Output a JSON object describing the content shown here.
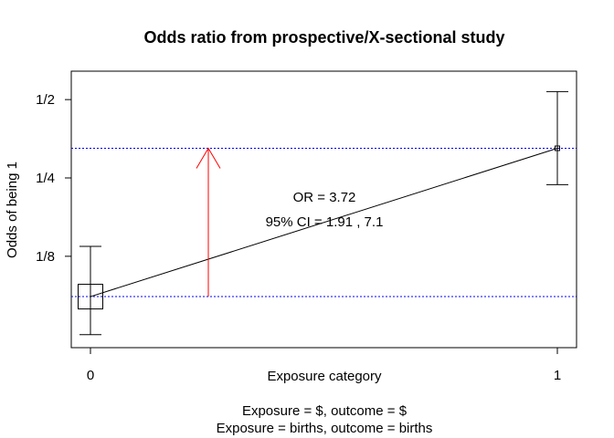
{
  "chart_data": {
    "type": "scatter",
    "title": "Odds ratio from prospective/X-sectional study",
    "xlabel": "Exposure category",
    "ylabel": "Odds of being 1",
    "x_ticks": [
      "0",
      "1"
    ],
    "y_scale": "log",
    "y_ticks": [
      {
        "value": 0.5,
        "label": "1/2"
      },
      {
        "value": 0.25,
        "label": "1/4"
      },
      {
        "value": 0.125,
        "label": "1/8"
      }
    ],
    "ylim": [
      0.0557,
      0.6429
    ],
    "points": [
      {
        "x": 0,
        "odds": 0.0875,
        "ci_lower": 0.0625,
        "ci_upper": 0.1364,
        "marker": "large-square"
      },
      {
        "x": 1,
        "odds": 0.325,
        "ci_lower": 0.2356,
        "ci_upper": 0.5364,
        "marker": "small-square"
      }
    ],
    "or_text": "OR =  3.72",
    "ci_text": "95% CI = 1.91 , 7.1",
    "footer_lines": [
      "Exposure = $, outcome = $",
      "Exposure = births, outcome = births"
    ],
    "reference_line_color": "#0000ff",
    "arrow_color": "#ff0000",
    "grid": false
  }
}
